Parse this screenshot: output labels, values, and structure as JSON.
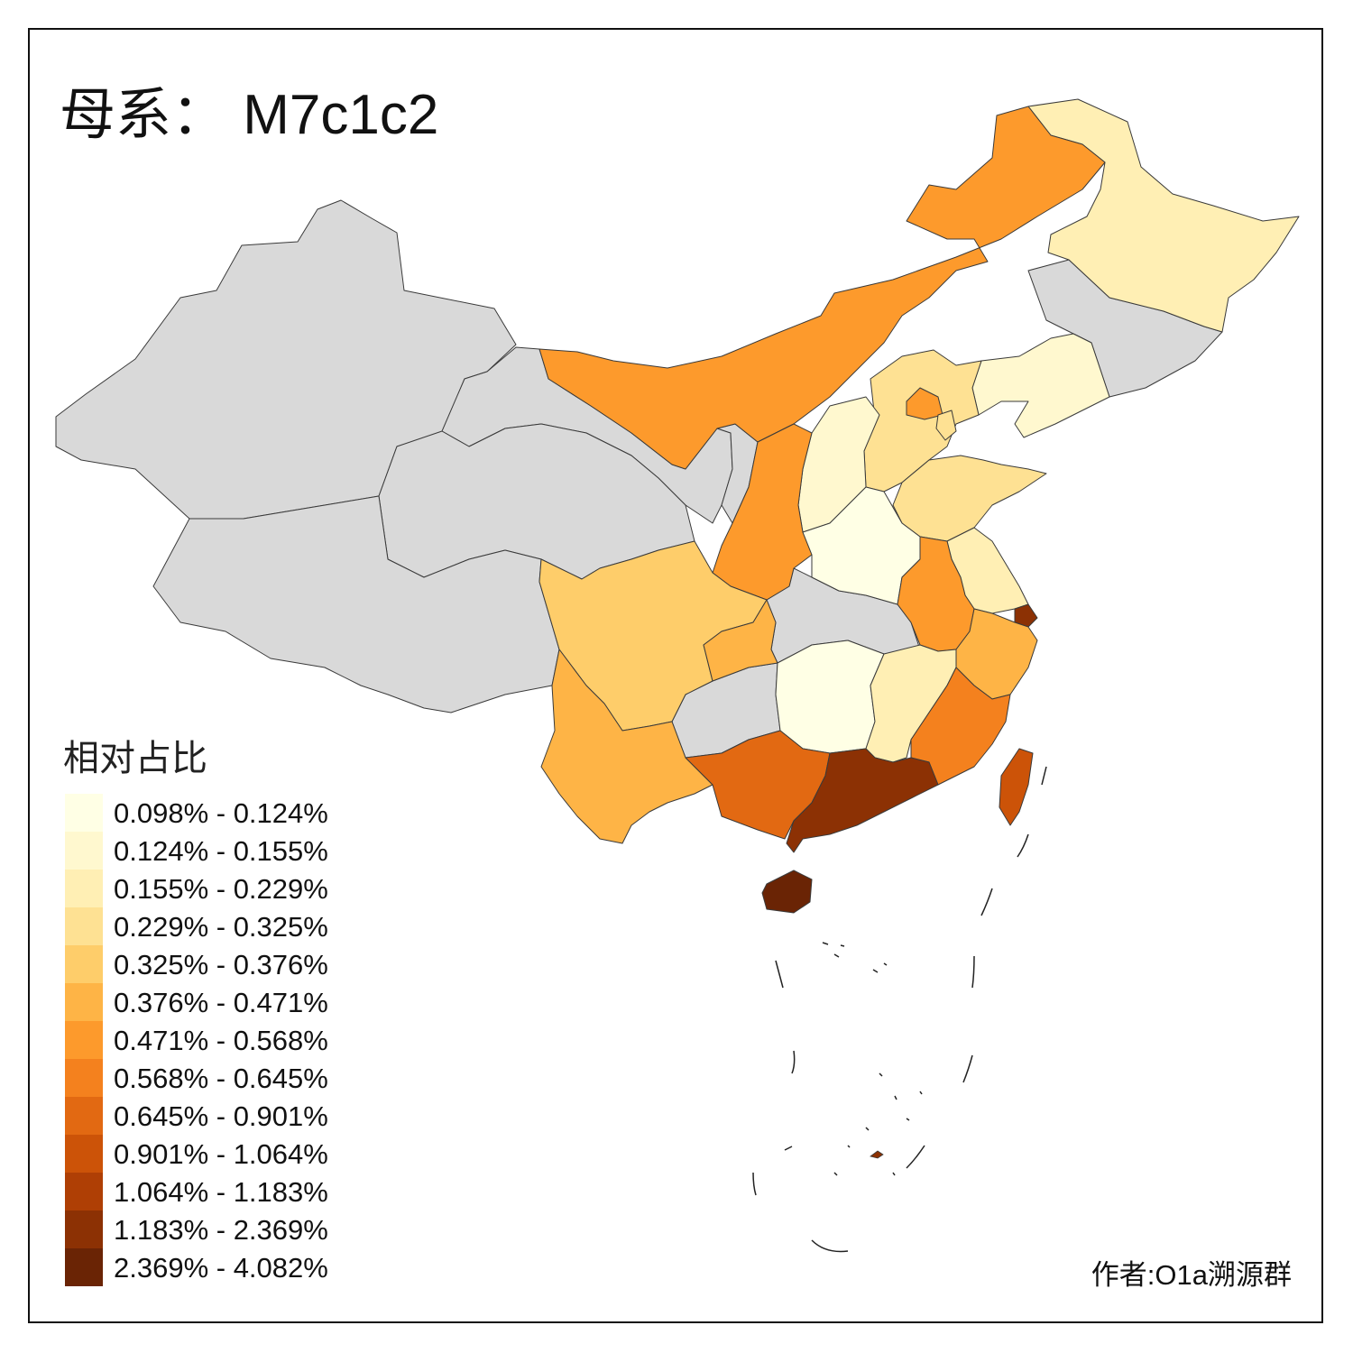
{
  "title": "母系： M7c1c2",
  "credit": "作者:O1a溯源群",
  "legend": {
    "title": "相对占比",
    "classes": [
      {
        "label": "0.098% - 0.124%",
        "color": "#ffffe5"
      },
      {
        "label": "0.124% - 0.155%",
        "color": "#fff8cf"
      },
      {
        "label": "0.155% - 0.229%",
        "color": "#ffefb4"
      },
      {
        "label": "0.229% - 0.325%",
        "color": "#fee193"
      },
      {
        "label": "0.325% - 0.376%",
        "color": "#fecd6a"
      },
      {
        "label": "0.376% - 0.471%",
        "color": "#feb446"
      },
      {
        "label": "0.471% - 0.568%",
        "color": "#fd9a2c"
      },
      {
        "label": "0.568% - 0.645%",
        "color": "#f4811e"
      },
      {
        "label": "0.645% - 0.901%",
        "color": "#e26912"
      },
      {
        "label": "0.901% - 1.064%",
        "color": "#cc5308"
      },
      {
        "label": "1.064% - 1.183%",
        "color": "#af3f05"
      },
      {
        "label": "1.183% - 2.369%",
        "color": "#8c3104"
      },
      {
        "label": "2.369% - 4.082%",
        "color": "#6a2405"
      }
    ]
  },
  "no_data_color": "#d9d9d9",
  "regions": [
    {
      "id": "heilongjiang",
      "class": 2
    },
    {
      "id": "jilin",
      "class": -1
    },
    {
      "id": "liaoning",
      "class": 1
    },
    {
      "id": "inner-mongolia",
      "class": 6
    },
    {
      "id": "xinjiang",
      "class": -1
    },
    {
      "id": "gansu",
      "class": -1
    },
    {
      "id": "qinghai",
      "class": -1
    },
    {
      "id": "tibet",
      "class": -1
    },
    {
      "id": "ningxia",
      "class": -1
    },
    {
      "id": "shaanxi",
      "class": 6
    },
    {
      "id": "shanxi",
      "class": 1
    },
    {
      "id": "hebei",
      "class": 3
    },
    {
      "id": "beijing",
      "class": 6
    },
    {
      "id": "tianjin",
      "class": 3
    },
    {
      "id": "shandong",
      "class": 3
    },
    {
      "id": "henan",
      "class": 0
    },
    {
      "id": "jiangsu",
      "class": 2
    },
    {
      "id": "anhui",
      "class": 6
    },
    {
      "id": "shanghai",
      "class": 11
    },
    {
      "id": "zhejiang",
      "class": 5
    },
    {
      "id": "sichuan",
      "class": 4
    },
    {
      "id": "chongqing",
      "class": 5
    },
    {
      "id": "hubei",
      "class": -1
    },
    {
      "id": "hunan",
      "class": 0
    },
    {
      "id": "jiangxi",
      "class": 2
    },
    {
      "id": "fujian",
      "class": 7
    },
    {
      "id": "taiwan",
      "class": 9
    },
    {
      "id": "yunnan",
      "class": 5
    },
    {
      "id": "guizhou",
      "class": -1
    },
    {
      "id": "guangxi",
      "class": 8
    },
    {
      "id": "guangdong",
      "class": 11
    },
    {
      "id": "hainan",
      "class": 12
    }
  ]
}
